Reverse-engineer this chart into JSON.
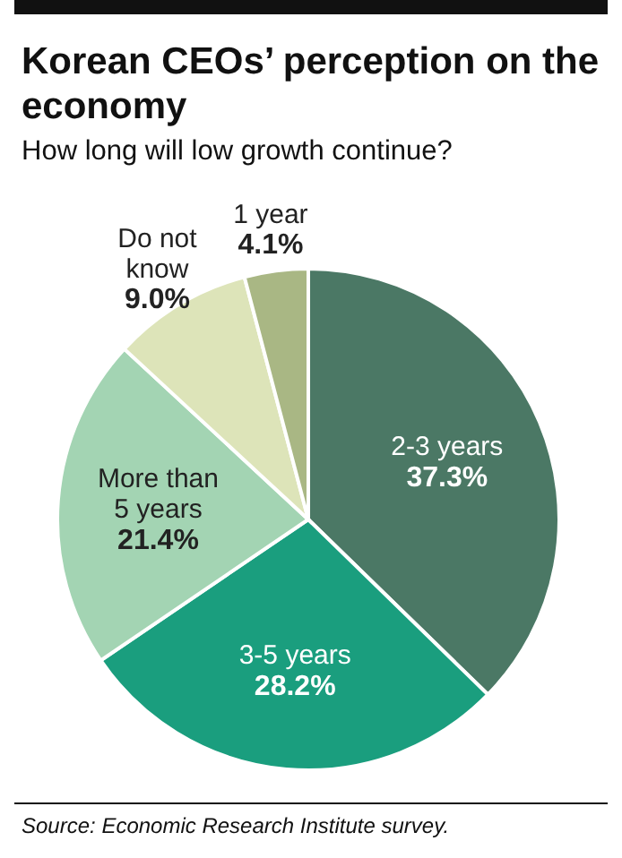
{
  "chart_data": {
    "type": "pie",
    "title": "Korean CEOs’ perception on the economy",
    "subtitle": "How long will low growth continue?",
    "categories": [
      "2-3 years",
      "3-5 years",
      "More than 5 years",
      "Do not know",
      "1 year"
    ],
    "values": [
      37.3,
      28.2,
      21.4,
      9.0,
      4.1
    ],
    "value_labels": [
      "37.3%",
      "28.2%",
      "21.4%",
      "9.0%",
      "4.1%"
    ],
    "colors": [
      "#4b7865",
      "#1a9e7e",
      "#a3d4b3",
      "#dde4b9",
      "#a9b784"
    ],
    "annotations": [
      "Source: Economic Research Institute survey."
    ]
  }
}
